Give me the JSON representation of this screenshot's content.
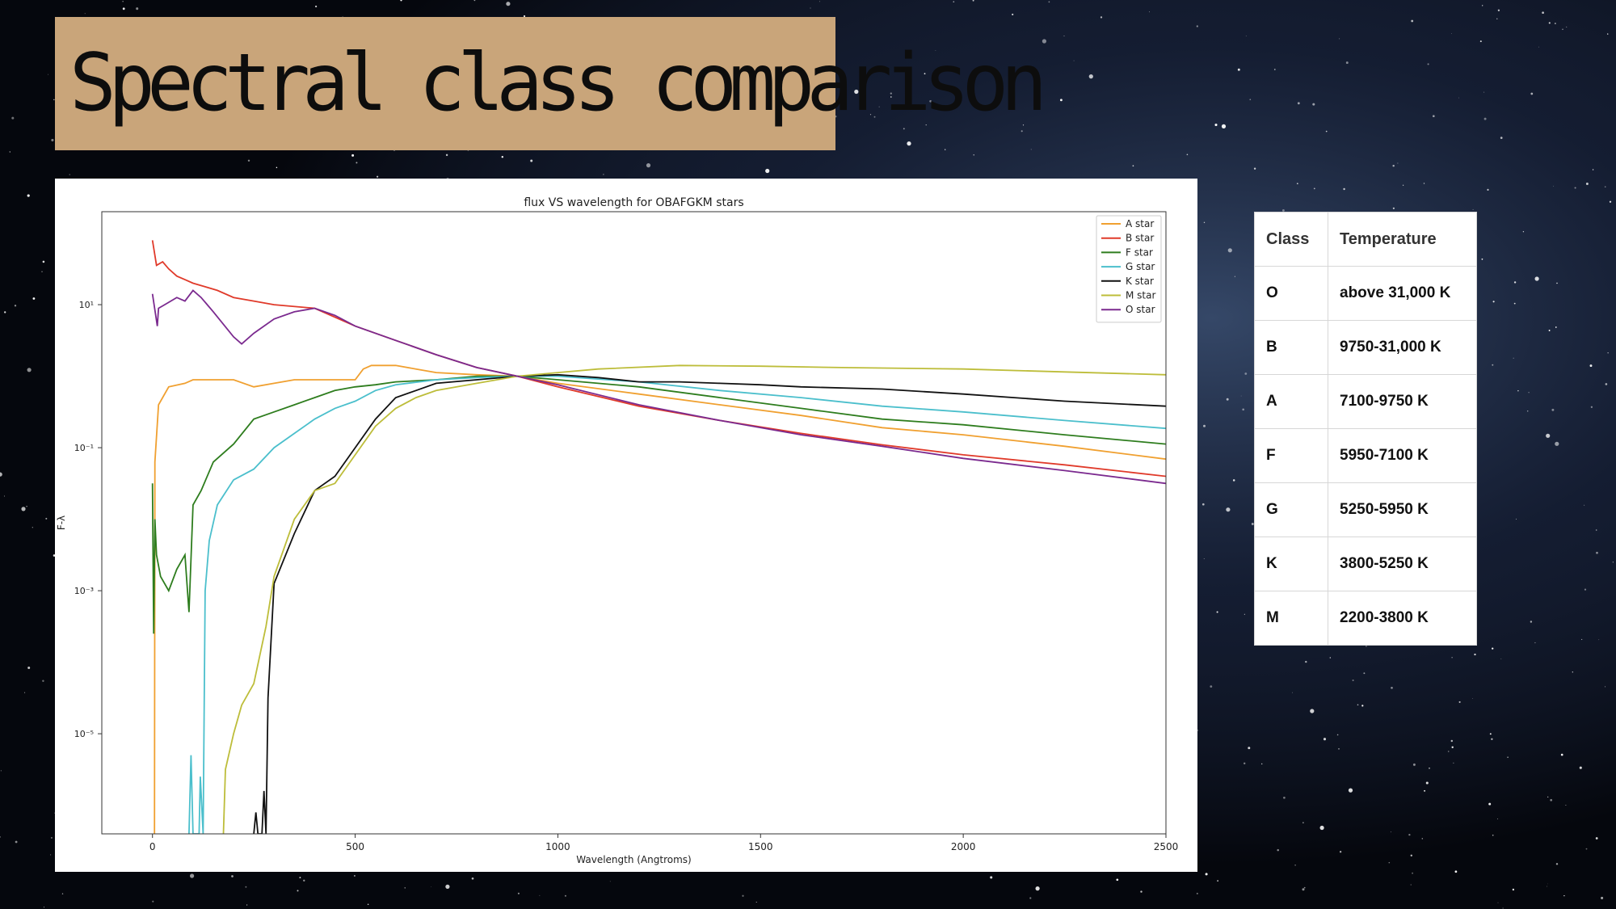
{
  "slide": {
    "title": "Spectral class comparison"
  },
  "chart_data": {
    "type": "line",
    "title": "flux VS wavelength for OBAFGKM stars",
    "xlabel": "Wavelength (Angtroms)",
    "ylabel": "F-λ",
    "xlim": [
      -125,
      2500
    ],
    "ylim_log10": [
      -6.4,
      2.3
    ],
    "y_scale": "log",
    "x_ticks": [
      0,
      500,
      1000,
      1500,
      2000,
      2500
    ],
    "y_ticks": [
      {
        "log10": 1,
        "label": "10¹"
      },
      {
        "log10": -1,
        "label": "10⁻¹"
      },
      {
        "log10": -3,
        "label": "10⁻³"
      },
      {
        "log10": -5,
        "label": "10⁻⁵"
      }
    ],
    "grid": false,
    "legend_position": "top-right",
    "series": [
      {
        "name": "A star",
        "color": "#f0a030",
        "points": [
          [
            5,
            -6.4
          ],
          [
            6,
            -1.2
          ],
          [
            15,
            -0.4
          ],
          [
            40,
            -0.15
          ],
          [
            80,
            -0.1
          ],
          [
            100,
            -0.05
          ],
          [
            150,
            -0.05
          ],
          [
            200,
            -0.05
          ],
          [
            250,
            -0.15
          ],
          [
            300,
            -0.1
          ],
          [
            350,
            -0.05
          ],
          [
            400,
            -0.05
          ],
          [
            450,
            -0.05
          ],
          [
            500,
            -0.05
          ],
          [
            520,
            0.1
          ],
          [
            540,
            0.15
          ],
          [
            560,
            0.15
          ],
          [
            600,
            0.15
          ],
          [
            650,
            0.1
          ],
          [
            700,
            0.05
          ],
          [
            800,
            0.02
          ],
          [
            900,
            0
          ],
          [
            1000,
            -0.1
          ],
          [
            1200,
            -0.25
          ],
          [
            1400,
            -0.4
          ],
          [
            1600,
            -0.55
          ],
          [
            1800,
            -0.72
          ],
          [
            2000,
            -0.82
          ],
          [
            2250,
            -0.98
          ],
          [
            2500,
            -1.16
          ]
        ]
      },
      {
        "name": "B star",
        "color": "#e03a2a",
        "points": [
          [
            0,
            1.9
          ],
          [
            10,
            1.55
          ],
          [
            25,
            1.6
          ],
          [
            40,
            1.5
          ],
          [
            60,
            1.4
          ],
          [
            80,
            1.35
          ],
          [
            100,
            1.3
          ],
          [
            130,
            1.25
          ],
          [
            160,
            1.2
          ],
          [
            200,
            1.1
          ],
          [
            250,
            1.05
          ],
          [
            300,
            1.0
          ],
          [
            400,
            0.95
          ],
          [
            500,
            0.7
          ],
          [
            600,
            0.5
          ],
          [
            700,
            0.3
          ],
          [
            800,
            0.12
          ],
          [
            900,
            0
          ],
          [
            1000,
            -0.15
          ],
          [
            1200,
            -0.42
          ],
          [
            1400,
            -0.62
          ],
          [
            1600,
            -0.8
          ],
          [
            1800,
            -0.96
          ],
          [
            2000,
            -1.1
          ],
          [
            2250,
            -1.24
          ],
          [
            2500,
            -1.4
          ]
        ]
      },
      {
        "name": "F star",
        "color": "#2e7d1e",
        "points": [
          [
            0,
            -1.5
          ],
          [
            3,
            -3.6
          ],
          [
            6,
            -2.0
          ],
          [
            10,
            -2.5
          ],
          [
            20,
            -2.8
          ],
          [
            40,
            -3.0
          ],
          [
            60,
            -2.7
          ],
          [
            80,
            -2.5
          ],
          [
            90,
            -3.3
          ],
          [
            100,
            -1.8
          ],
          [
            120,
            -1.6
          ],
          [
            150,
            -1.2
          ],
          [
            200,
            -0.95
          ],
          [
            250,
            -0.6
          ],
          [
            300,
            -0.5
          ],
          [
            350,
            -0.4
          ],
          [
            400,
            -0.3
          ],
          [
            450,
            -0.2
          ],
          [
            500,
            -0.15
          ],
          [
            550,
            -0.12
          ],
          [
            600,
            -0.08
          ],
          [
            700,
            -0.05
          ],
          [
            800,
            0
          ],
          [
            900,
            0
          ],
          [
            1000,
            -0.05
          ],
          [
            1200,
            -0.15
          ],
          [
            1400,
            -0.3
          ],
          [
            1600,
            -0.45
          ],
          [
            1800,
            -0.6
          ],
          [
            2000,
            -0.68
          ],
          [
            2250,
            -0.82
          ],
          [
            2500,
            -0.95
          ]
        ]
      },
      {
        "name": "G star",
        "color": "#4bbfcc",
        "points": [
          [
            90,
            -6.4
          ],
          [
            95,
            -5.3
          ],
          [
            100,
            -6.4
          ],
          [
            115,
            -6.4
          ],
          [
            118,
            -5.6
          ],
          [
            125,
            -6.4
          ],
          [
            130,
            -3.0
          ],
          [
            140,
            -2.3
          ],
          [
            160,
            -1.8
          ],
          [
            200,
            -1.45
          ],
          [
            250,
            -1.3
          ],
          [
            300,
            -1.0
          ],
          [
            350,
            -0.8
          ],
          [
            400,
            -0.6
          ],
          [
            450,
            -0.45
          ],
          [
            500,
            -0.35
          ],
          [
            550,
            -0.2
          ],
          [
            600,
            -0.12
          ],
          [
            700,
            -0.05
          ],
          [
            800,
            -0.02
          ],
          [
            900,
            0
          ],
          [
            1000,
            0
          ],
          [
            1200,
            -0.08
          ],
          [
            1400,
            -0.2
          ],
          [
            1600,
            -0.3
          ],
          [
            1800,
            -0.42
          ],
          [
            2000,
            -0.5
          ],
          [
            2250,
            -0.62
          ],
          [
            2500,
            -0.73
          ]
        ]
      },
      {
        "name": "K star",
        "color": "#111111",
        "points": [
          [
            250,
            -6.4
          ],
          [
            255,
            -6.1
          ],
          [
            260,
            -6.4
          ],
          [
            270,
            -6.4
          ],
          [
            275,
            -5.8
          ],
          [
            280,
            -6.4
          ],
          [
            285,
            -4.5
          ],
          [
            300,
            -2.9
          ],
          [
            350,
            -2.2
          ],
          [
            400,
            -1.6
          ],
          [
            450,
            -1.4
          ],
          [
            500,
            -1.0
          ],
          [
            550,
            -0.6
          ],
          [
            600,
            -0.3
          ],
          [
            650,
            -0.2
          ],
          [
            700,
            -0.1
          ],
          [
            800,
            -0.05
          ],
          [
            900,
            0
          ],
          [
            1000,
            0.02
          ],
          [
            1100,
            -0.02
          ],
          [
            1200,
            -0.08
          ],
          [
            1300,
            -0.08
          ],
          [
            1400,
            -0.1
          ],
          [
            1500,
            -0.12
          ],
          [
            1600,
            -0.15
          ],
          [
            1800,
            -0.18
          ],
          [
            2000,
            -0.25
          ],
          [
            2250,
            -0.35
          ],
          [
            2500,
            -0.42
          ]
        ]
      },
      {
        "name": "M star",
        "color": "#bdbd3a",
        "points": [
          [
            175,
            -6.4
          ],
          [
            180,
            -5.5
          ],
          [
            200,
            -5.0
          ],
          [
            220,
            -4.6
          ],
          [
            250,
            -4.3
          ],
          [
            280,
            -3.5
          ],
          [
            300,
            -2.8
          ],
          [
            350,
            -2.0
          ],
          [
            400,
            -1.6
          ],
          [
            450,
            -1.5
          ],
          [
            500,
            -1.1
          ],
          [
            550,
            -0.7
          ],
          [
            600,
            -0.45
          ],
          [
            650,
            -0.3
          ],
          [
            700,
            -0.2
          ],
          [
            800,
            -0.1
          ],
          [
            900,
            0
          ],
          [
            1000,
            0.05
          ],
          [
            1100,
            0.1
          ],
          [
            1300,
            0.15
          ],
          [
            1500,
            0.14
          ],
          [
            1700,
            0.12
          ],
          [
            2000,
            0.1
          ],
          [
            2250,
            0.06
          ],
          [
            2500,
            0.02
          ]
        ]
      },
      {
        "name": "O star",
        "color": "#7b2a8f",
        "points": [
          [
            0,
            1.15
          ],
          [
            8,
            0.85
          ],
          [
            12,
            0.7
          ],
          [
            15,
            0.95
          ],
          [
            30,
            1.0
          ],
          [
            60,
            1.1
          ],
          [
            80,
            1.05
          ],
          [
            100,
            1.2
          ],
          [
            120,
            1.1
          ],
          [
            150,
            0.9
          ],
          [
            200,
            0.55
          ],
          [
            220,
            0.45
          ],
          [
            250,
            0.6
          ],
          [
            300,
            0.8
          ],
          [
            350,
            0.9
          ],
          [
            400,
            0.95
          ],
          [
            450,
            0.85
          ],
          [
            500,
            0.7
          ],
          [
            600,
            0.5
          ],
          [
            700,
            0.3
          ],
          [
            800,
            0.12
          ],
          [
            900,
            0
          ],
          [
            1000,
            -0.12
          ],
          [
            1200,
            -0.4
          ],
          [
            1400,
            -0.62
          ],
          [
            1600,
            -0.82
          ],
          [
            1800,
            -0.98
          ],
          [
            2000,
            -1.15
          ],
          [
            2250,
            -1.32
          ],
          [
            2500,
            -1.5
          ]
        ]
      }
    ]
  },
  "class_table": {
    "headers": [
      "Class",
      "Temperature"
    ],
    "rows": [
      [
        "O",
        "above 31,000 K"
      ],
      [
        "B",
        "9750-31,000 K"
      ],
      [
        "A",
        "7100-9750 K"
      ],
      [
        "F",
        "5950-7100 K"
      ],
      [
        "G",
        "5250-5950 K"
      ],
      [
        "K",
        "3800-5250 K"
      ],
      [
        "M",
        "2200-3800 K"
      ]
    ]
  }
}
